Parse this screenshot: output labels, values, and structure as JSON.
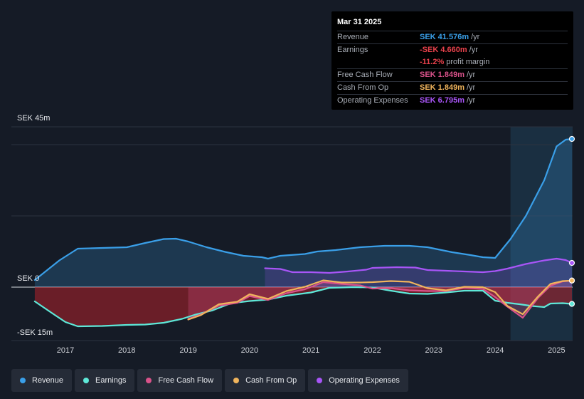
{
  "tooltip": {
    "date": "Mar 31 2025",
    "rows": [
      {
        "label": "Revenue",
        "value": "SEK 41.576m",
        "unit": "/yr",
        "color": "#3a9fe8"
      },
      {
        "label": "Earnings",
        "value": "-SEK 4.660m",
        "unit": "/yr",
        "color": "#e8414b"
      },
      {
        "label": "",
        "value": "-11.2%",
        "unit": "profit margin",
        "color": "#e8414b"
      },
      {
        "label": "Free Cash Flow",
        "value": "SEK 1.849m",
        "unit": "/yr",
        "color": "#d9528a"
      },
      {
        "label": "Cash From Op",
        "value": "SEK 1.849m",
        "unit": "/yr",
        "color": "#f0b45c"
      },
      {
        "label": "Operating Expenses",
        "value": "SEK 6.795m",
        "unit": "/yr",
        "color": "#a855f7"
      }
    ]
  },
  "legend": [
    {
      "label": "Revenue",
      "color": "#3a9fe8"
    },
    {
      "label": "Earnings",
      "color": "#5ee8d8"
    },
    {
      "label": "Free Cash Flow",
      "color": "#d9528a"
    },
    {
      "label": "Cash From Op",
      "color": "#f0b45c"
    },
    {
      "label": "Operating Expenses",
      "color": "#a855f7"
    }
  ],
  "chart_data": {
    "type": "line",
    "ylim": [
      -15,
      45
    ],
    "y_ticks": [
      {
        "value": 45,
        "label": "SEK 45m"
      },
      {
        "value": 0,
        "label": "SEK 0"
      },
      {
        "value": -15,
        "label": "-SEK 15m"
      }
    ],
    "x_ticks": [
      "2017",
      "2018",
      "2019",
      "2020",
      "2021",
      "2022",
      "2023",
      "2024",
      "2025"
    ],
    "xlim": [
      2016.5,
      2025.25
    ],
    "forecast_start": 2024.25,
    "series": [
      {
        "name": "Revenue",
        "color": "#3a9fe8",
        "fill": true,
        "points": [
          [
            2016.5,
            2.0
          ],
          [
            2016.9,
            7.5
          ],
          [
            2017.2,
            10.8
          ],
          [
            2017.6,
            11.0
          ],
          [
            2018.0,
            11.2
          ],
          [
            2018.3,
            12.4
          ],
          [
            2018.6,
            13.5
          ],
          [
            2018.8,
            13.6
          ],
          [
            2019.0,
            12.8
          ],
          [
            2019.3,
            11.2
          ],
          [
            2019.6,
            9.9
          ],
          [
            2019.9,
            8.8
          ],
          [
            2020.2,
            8.4
          ],
          [
            2020.3,
            8.0
          ],
          [
            2020.5,
            8.8
          ],
          [
            2020.9,
            9.3
          ],
          [
            2021.1,
            10.0
          ],
          [
            2021.4,
            10.4
          ],
          [
            2021.8,
            11.2
          ],
          [
            2022.2,
            11.6
          ],
          [
            2022.6,
            11.6
          ],
          [
            2022.9,
            11.2
          ],
          [
            2023.3,
            9.8
          ],
          [
            2023.6,
            9.0
          ],
          [
            2023.8,
            8.4
          ],
          [
            2024.0,
            8.2
          ],
          [
            2024.25,
            13.5
          ],
          [
            2024.5,
            20.0
          ],
          [
            2024.8,
            30.0
          ],
          [
            2025.0,
            39.5
          ],
          [
            2025.15,
            41.4
          ],
          [
            2025.25,
            41.6
          ]
        ]
      },
      {
        "name": "Earnings",
        "color": "#5ee8d8",
        "fill": true,
        "points": [
          [
            2016.5,
            -4.0
          ],
          [
            2016.8,
            -7.5
          ],
          [
            2017.0,
            -9.8
          ],
          [
            2017.2,
            -11.0
          ],
          [
            2017.6,
            -10.9
          ],
          [
            2018.0,
            -10.6
          ],
          [
            2018.3,
            -10.5
          ],
          [
            2018.6,
            -10.0
          ],
          [
            2018.9,
            -8.9
          ],
          [
            2019.1,
            -7.8
          ],
          [
            2019.4,
            -6.5
          ],
          [
            2019.7,
            -4.5
          ],
          [
            2020.0,
            -3.9
          ],
          [
            2020.3,
            -3.5
          ],
          [
            2020.6,
            -2.4
          ],
          [
            2021.0,
            -1.5
          ],
          [
            2021.3,
            -0.2
          ],
          [
            2021.7,
            0.0
          ],
          [
            2022.0,
            -0.1
          ],
          [
            2022.3,
            -1.0
          ],
          [
            2022.6,
            -1.8
          ],
          [
            2022.9,
            -1.9
          ],
          [
            2023.2,
            -1.5
          ],
          [
            2023.5,
            -1.0
          ],
          [
            2023.8,
            -1.0
          ],
          [
            2024.0,
            -3.8
          ],
          [
            2024.2,
            -4.4
          ],
          [
            2024.4,
            -4.8
          ],
          [
            2024.6,
            -5.3
          ],
          [
            2024.8,
            -5.6
          ],
          [
            2024.9,
            -4.6
          ],
          [
            2025.1,
            -4.5
          ],
          [
            2025.25,
            -4.7
          ]
        ]
      },
      {
        "name": "Free Cash Flow",
        "color": "#d9528a",
        "fill": true,
        "points": [
          [
            2019.0,
            -8.9
          ],
          [
            2019.2,
            -7.7
          ],
          [
            2019.5,
            -5.2
          ],
          [
            2019.8,
            -4.4
          ],
          [
            2020.0,
            -2.5
          ],
          [
            2020.3,
            -3.6
          ],
          [
            2020.6,
            -1.7
          ],
          [
            2020.9,
            -0.6
          ],
          [
            2021.2,
            1.4
          ],
          [
            2021.5,
            0.9
          ],
          [
            2021.8,
            0.5
          ],
          [
            2022.0,
            -0.4
          ],
          [
            2022.3,
            -0.3
          ],
          [
            2022.6,
            -0.9
          ],
          [
            2022.9,
            -1.1
          ],
          [
            2023.2,
            -1.1
          ],
          [
            2023.5,
            -0.2
          ],
          [
            2023.8,
            -0.5
          ],
          [
            2024.0,
            -2.8
          ],
          [
            2024.2,
            -5.5
          ],
          [
            2024.45,
            -8.6
          ],
          [
            2024.7,
            -3.0
          ],
          [
            2024.9,
            0.4
          ],
          [
            2025.1,
            1.6
          ],
          [
            2025.25,
            1.849
          ]
        ]
      },
      {
        "name": "Cash From Op",
        "color": "#f0b45c",
        "fill": false,
        "points": [
          [
            2019.0,
            -9.1
          ],
          [
            2019.2,
            -7.9
          ],
          [
            2019.5,
            -4.8
          ],
          [
            2019.8,
            -4.1
          ],
          [
            2020.0,
            -2.0
          ],
          [
            2020.3,
            -3.3
          ],
          [
            2020.6,
            -1.1
          ],
          [
            2020.9,
            0.1
          ],
          [
            2021.2,
            1.9
          ],
          [
            2021.5,
            1.3
          ],
          [
            2021.8,
            1.3
          ],
          [
            2022.0,
            1.4
          ],
          [
            2022.3,
            1.7
          ],
          [
            2022.6,
            1.5
          ],
          [
            2022.9,
            -0.3
          ],
          [
            2023.2,
            -0.9
          ],
          [
            2023.5,
            0.1
          ],
          [
            2023.8,
            0.0
          ],
          [
            2024.0,
            -1.4
          ],
          [
            2024.2,
            -5.3
          ],
          [
            2024.45,
            -7.6
          ],
          [
            2024.7,
            -2.6
          ],
          [
            2024.9,
            0.9
          ],
          [
            2025.1,
            1.7
          ],
          [
            2025.25,
            1.849
          ]
        ]
      },
      {
        "name": "Operating Expenses",
        "color": "#a855f7",
        "fill": true,
        "points": [
          [
            2020.25,
            5.3
          ],
          [
            2020.5,
            5.1
          ],
          [
            2020.7,
            4.2
          ],
          [
            2021.0,
            4.2
          ],
          [
            2021.3,
            4.0
          ],
          [
            2021.6,
            4.4
          ],
          [
            2021.9,
            4.9
          ],
          [
            2022.0,
            5.4
          ],
          [
            2022.4,
            5.6
          ],
          [
            2022.7,
            5.5
          ],
          [
            2022.9,
            4.8
          ],
          [
            2023.2,
            4.6
          ],
          [
            2023.5,
            4.4
          ],
          [
            2023.8,
            4.2
          ],
          [
            2024.0,
            4.5
          ],
          [
            2024.2,
            5.2
          ],
          [
            2024.5,
            6.5
          ],
          [
            2024.8,
            7.5
          ],
          [
            2025.0,
            8.0
          ],
          [
            2025.15,
            7.6
          ],
          [
            2025.25,
            6.795
          ]
        ]
      }
    ]
  }
}
